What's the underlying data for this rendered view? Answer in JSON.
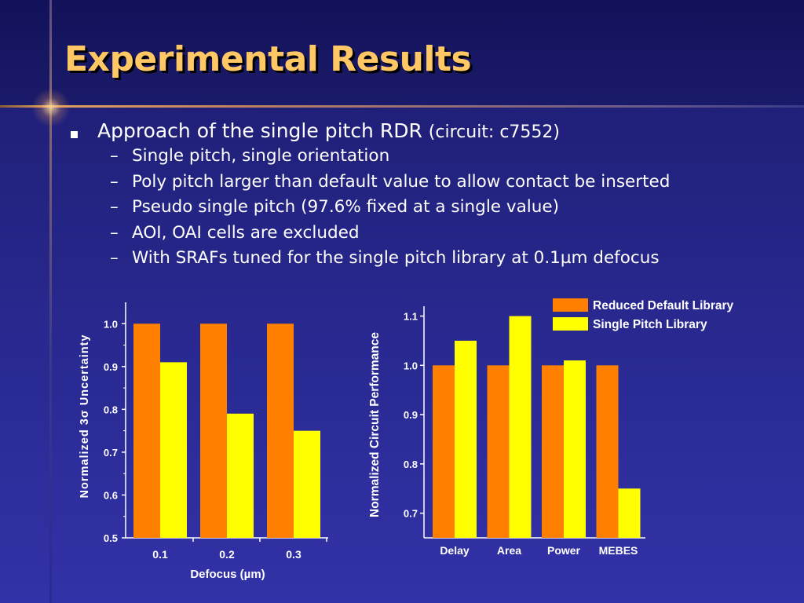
{
  "title": "Experimental Results",
  "bullet": {
    "text_main": "Approach of the single pitch RDR ",
    "text_small": "(circuit: c7552)",
    "subitems": [
      "Single pitch, single orientation",
      "Poly pitch larger than default value to allow contact be inserted",
      "Pseudo single pitch (97.6% fixed at a single value)",
      "AOI, OAI cells are excluded",
      "With SRAFs tuned for the single pitch library at 0.1µm defocus"
    ]
  },
  "colors": {
    "orange": "#ff7f00",
    "yellow": "#ffff00",
    "title": "#ffc865"
  },
  "chart_data": [
    {
      "type": "bar",
      "categories": [
        "0.1",
        "0.2",
        "0.3"
      ],
      "series": [
        {
          "values": [
            1.0,
            1.0,
            1.0
          ]
        },
        {
          "values": [
            0.91,
            0.79,
            0.75
          ]
        }
      ],
      "xlabel": "Defocus (µm)",
      "ylabel": "Normalized 3σ Uncertainty",
      "ylim": [
        0.5,
        1.05
      ],
      "yticks": [
        "0.5",
        "0.6",
        "0.7",
        "0.8",
        "0.9",
        "1.0"
      ]
    },
    {
      "type": "bar",
      "categories": [
        "Delay",
        "Area",
        "Power",
        "MEBES"
      ],
      "series": [
        {
          "name": "Reduced Default Library",
          "values": [
            1.0,
            1.0,
            1.0,
            1.0
          ]
        },
        {
          "name": "Single Pitch Library",
          "values": [
            1.05,
            1.1,
            1.01,
            0.75
          ]
        }
      ],
      "xlabel": "",
      "ylabel": "Normalized Circuit Performance",
      "ylim": [
        0.65,
        1.12
      ],
      "yticks": [
        "0.7",
        "0.8",
        "0.9",
        "1.0",
        "1.1"
      ],
      "legend": "top-right"
    }
  ]
}
